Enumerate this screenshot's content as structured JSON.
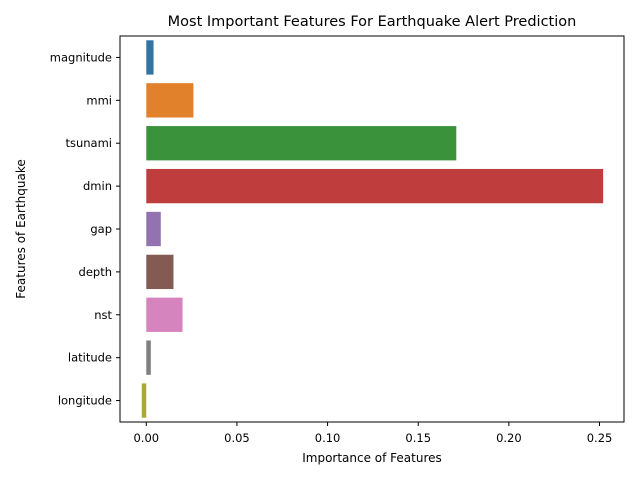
{
  "chart_data": {
    "type": "bar",
    "orientation": "horizontal",
    "title": "Most Important Features For Earthquake Alert Prediction",
    "xlabel": "Importance of Features",
    "ylabel": "Features of Earthquake",
    "categories": [
      "magnitude",
      "mmi",
      "tsunami",
      "dmin",
      "gap",
      "depth",
      "nst",
      "latitude",
      "longitude"
    ],
    "values": [
      0.004,
      0.026,
      0.171,
      0.252,
      0.008,
      0.015,
      0.02,
      0.0025,
      -0.0025
    ],
    "colors": [
      "#3274a1",
      "#e1812c",
      "#3a923a",
      "#c03d3e",
      "#9372b2",
      "#845b53",
      "#d684bd",
      "#7f7f7f",
      "#a9aa35"
    ],
    "xlim": [
      -0.0145,
      0.2635
    ],
    "xticks": [
      0.0,
      0.05,
      0.1,
      0.15,
      0.2,
      0.25
    ],
    "xtick_labels": [
      "0.00",
      "0.05",
      "0.10",
      "0.15",
      "0.20",
      "0.25"
    ],
    "grid": false,
    "legend": "none"
  }
}
